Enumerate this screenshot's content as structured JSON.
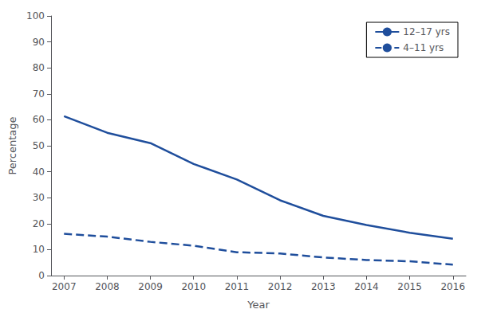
{
  "chart_data": {
    "type": "line",
    "x": [
      2007,
      2008,
      2009,
      2010,
      2011,
      2012,
      2013,
      2014,
      2015,
      2016
    ],
    "series": [
      {
        "name": "12–17 yrs",
        "color": "#1f4e9c",
        "line_style": "solid",
        "values": [
          61.4,
          55.0,
          51.0,
          43.0,
          37.0,
          29.0,
          23.0,
          19.5,
          16.5,
          14.2
        ]
      },
      {
        "name": "4–11 yrs",
        "color": "#1f4e9c",
        "line_style": "dashed",
        "values": [
          16.1,
          15.0,
          13.0,
          11.5,
          9.0,
          8.5,
          7.0,
          6.0,
          5.5,
          4.2
        ]
      }
    ],
    "xlabel": "Year",
    "ylabel": "Percentage",
    "xlim": [
      2006.7,
      2016.3
    ],
    "xticks": [
      2007,
      2008,
      2009,
      2010,
      2011,
      2012,
      2013,
      2014,
      2015,
      2016
    ],
    "ylim": [
      0,
      100
    ],
    "yticks": [
      0,
      10,
      20,
      30,
      40,
      50,
      60,
      70,
      80,
      90,
      100
    ],
    "grid": false,
    "legend": "upper right"
  }
}
